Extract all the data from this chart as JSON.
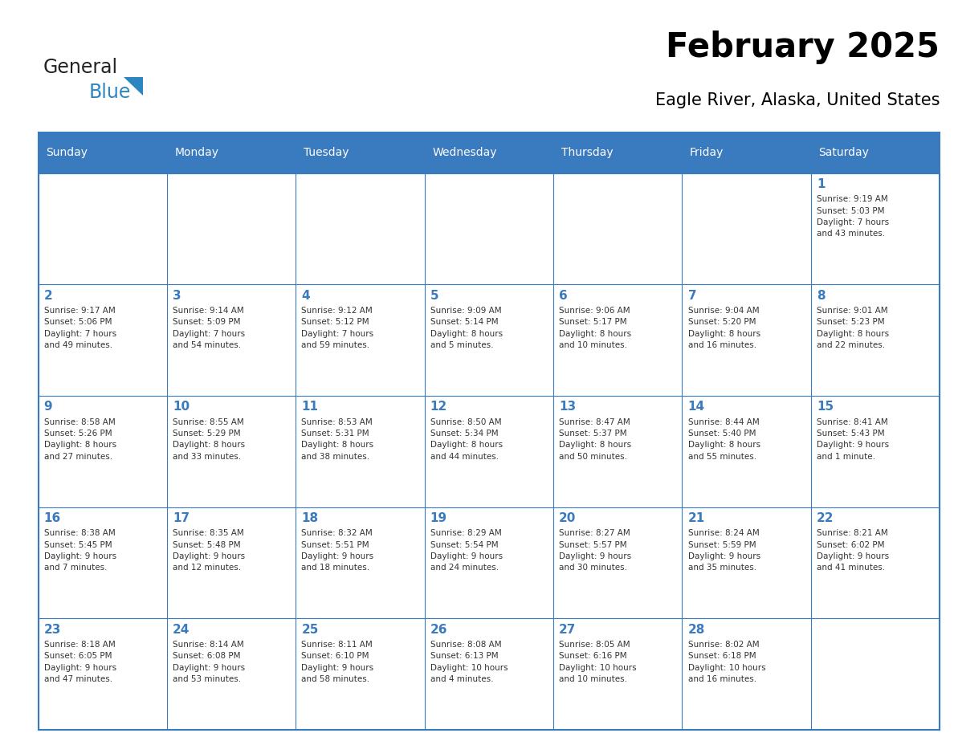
{
  "title": "February 2025",
  "subtitle": "Eagle River, Alaska, United States",
  "header_bg": "#3a7abf",
  "header_text": "#ffffff",
  "border_color": "#3a7abf",
  "day_names": [
    "Sunday",
    "Monday",
    "Tuesday",
    "Wednesday",
    "Thursday",
    "Friday",
    "Saturday"
  ],
  "logo_general_color": "#222222",
  "logo_blue_color": "#2e86c1",
  "calendar_data": [
    [
      {
        "day": null,
        "info": ""
      },
      {
        "day": null,
        "info": ""
      },
      {
        "day": null,
        "info": ""
      },
      {
        "day": null,
        "info": ""
      },
      {
        "day": null,
        "info": ""
      },
      {
        "day": null,
        "info": ""
      },
      {
        "day": 1,
        "info": "Sunrise: 9:19 AM\nSunset: 5:03 PM\nDaylight: 7 hours\nand 43 minutes."
      }
    ],
    [
      {
        "day": 2,
        "info": "Sunrise: 9:17 AM\nSunset: 5:06 PM\nDaylight: 7 hours\nand 49 minutes."
      },
      {
        "day": 3,
        "info": "Sunrise: 9:14 AM\nSunset: 5:09 PM\nDaylight: 7 hours\nand 54 minutes."
      },
      {
        "day": 4,
        "info": "Sunrise: 9:12 AM\nSunset: 5:12 PM\nDaylight: 7 hours\nand 59 minutes."
      },
      {
        "day": 5,
        "info": "Sunrise: 9:09 AM\nSunset: 5:14 PM\nDaylight: 8 hours\nand 5 minutes."
      },
      {
        "day": 6,
        "info": "Sunrise: 9:06 AM\nSunset: 5:17 PM\nDaylight: 8 hours\nand 10 minutes."
      },
      {
        "day": 7,
        "info": "Sunrise: 9:04 AM\nSunset: 5:20 PM\nDaylight: 8 hours\nand 16 minutes."
      },
      {
        "day": 8,
        "info": "Sunrise: 9:01 AM\nSunset: 5:23 PM\nDaylight: 8 hours\nand 22 minutes."
      }
    ],
    [
      {
        "day": 9,
        "info": "Sunrise: 8:58 AM\nSunset: 5:26 PM\nDaylight: 8 hours\nand 27 minutes."
      },
      {
        "day": 10,
        "info": "Sunrise: 8:55 AM\nSunset: 5:29 PM\nDaylight: 8 hours\nand 33 minutes."
      },
      {
        "day": 11,
        "info": "Sunrise: 8:53 AM\nSunset: 5:31 PM\nDaylight: 8 hours\nand 38 minutes."
      },
      {
        "day": 12,
        "info": "Sunrise: 8:50 AM\nSunset: 5:34 PM\nDaylight: 8 hours\nand 44 minutes."
      },
      {
        "day": 13,
        "info": "Sunrise: 8:47 AM\nSunset: 5:37 PM\nDaylight: 8 hours\nand 50 minutes."
      },
      {
        "day": 14,
        "info": "Sunrise: 8:44 AM\nSunset: 5:40 PM\nDaylight: 8 hours\nand 55 minutes."
      },
      {
        "day": 15,
        "info": "Sunrise: 8:41 AM\nSunset: 5:43 PM\nDaylight: 9 hours\nand 1 minute."
      }
    ],
    [
      {
        "day": 16,
        "info": "Sunrise: 8:38 AM\nSunset: 5:45 PM\nDaylight: 9 hours\nand 7 minutes."
      },
      {
        "day": 17,
        "info": "Sunrise: 8:35 AM\nSunset: 5:48 PM\nDaylight: 9 hours\nand 12 minutes."
      },
      {
        "day": 18,
        "info": "Sunrise: 8:32 AM\nSunset: 5:51 PM\nDaylight: 9 hours\nand 18 minutes."
      },
      {
        "day": 19,
        "info": "Sunrise: 8:29 AM\nSunset: 5:54 PM\nDaylight: 9 hours\nand 24 minutes."
      },
      {
        "day": 20,
        "info": "Sunrise: 8:27 AM\nSunset: 5:57 PM\nDaylight: 9 hours\nand 30 minutes."
      },
      {
        "day": 21,
        "info": "Sunrise: 8:24 AM\nSunset: 5:59 PM\nDaylight: 9 hours\nand 35 minutes."
      },
      {
        "day": 22,
        "info": "Sunrise: 8:21 AM\nSunset: 6:02 PM\nDaylight: 9 hours\nand 41 minutes."
      }
    ],
    [
      {
        "day": 23,
        "info": "Sunrise: 8:18 AM\nSunset: 6:05 PM\nDaylight: 9 hours\nand 47 minutes."
      },
      {
        "day": 24,
        "info": "Sunrise: 8:14 AM\nSunset: 6:08 PM\nDaylight: 9 hours\nand 53 minutes."
      },
      {
        "day": 25,
        "info": "Sunrise: 8:11 AM\nSunset: 6:10 PM\nDaylight: 9 hours\nand 58 minutes."
      },
      {
        "day": 26,
        "info": "Sunrise: 8:08 AM\nSunset: 6:13 PM\nDaylight: 10 hours\nand 4 minutes."
      },
      {
        "day": 27,
        "info": "Sunrise: 8:05 AM\nSunset: 6:16 PM\nDaylight: 10 hours\nand 10 minutes."
      },
      {
        "day": 28,
        "info": "Sunrise: 8:02 AM\nSunset: 6:18 PM\nDaylight: 10 hours\nand 16 minutes."
      },
      {
        "day": null,
        "info": ""
      }
    ]
  ]
}
